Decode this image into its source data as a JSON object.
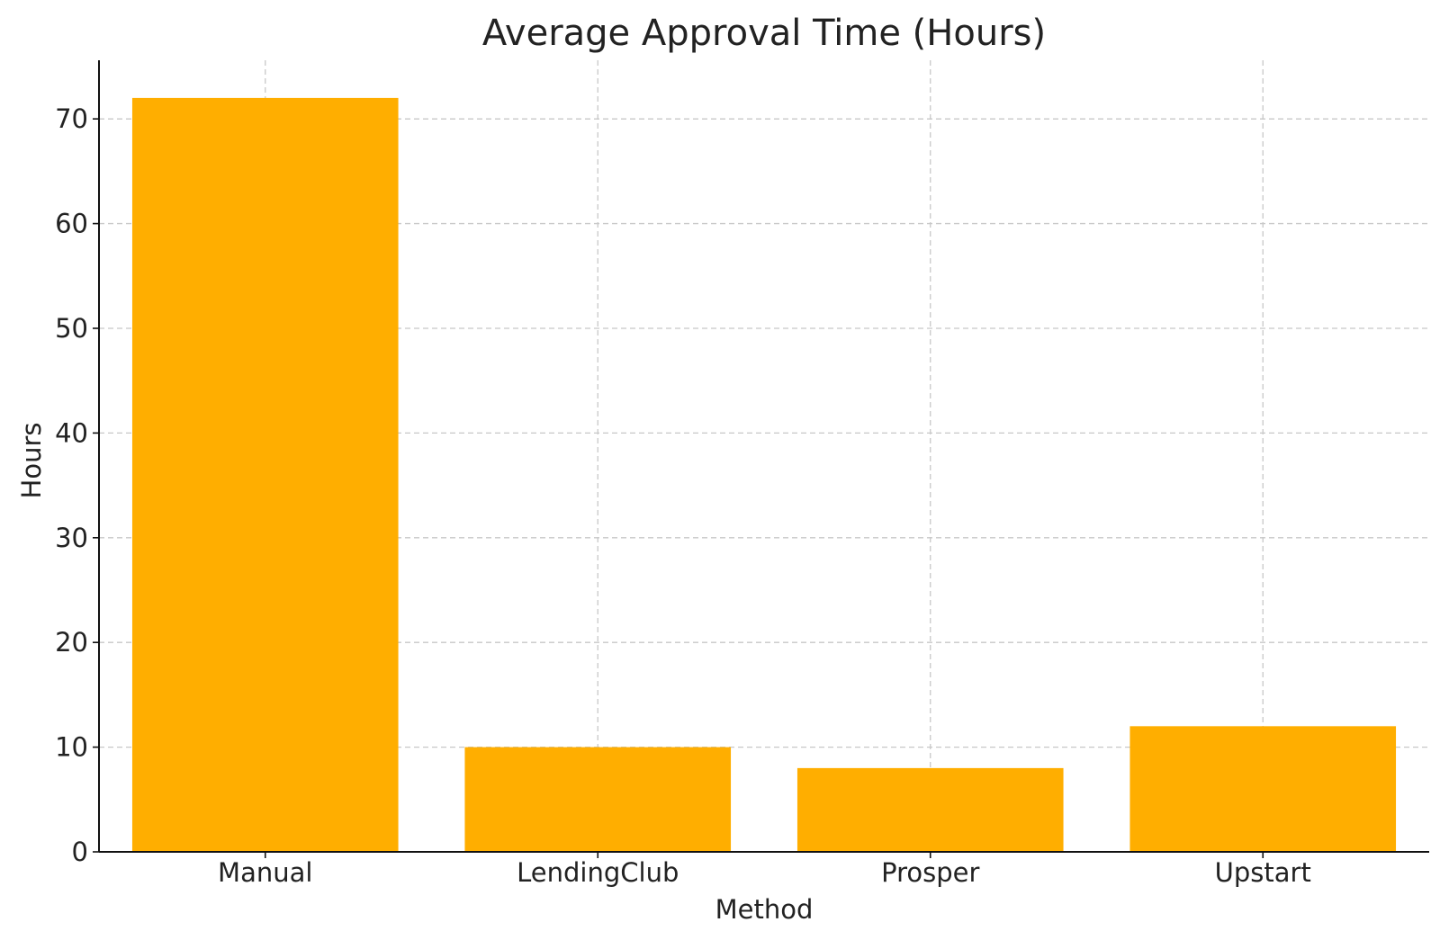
{
  "chart_data": {
    "type": "bar",
    "title": "Average Approval Time (Hours)",
    "xlabel": "Method",
    "ylabel": "Hours",
    "categories": [
      "Manual",
      "LendingClub",
      "Prosper",
      "Upstart"
    ],
    "values": [
      72,
      10,
      8,
      12
    ],
    "ylim": [
      0,
      75.6
    ],
    "yticks": [
      0,
      10,
      20,
      30,
      40,
      50,
      60,
      70
    ],
    "grid": true,
    "bar_color": "#FFAE00"
  }
}
